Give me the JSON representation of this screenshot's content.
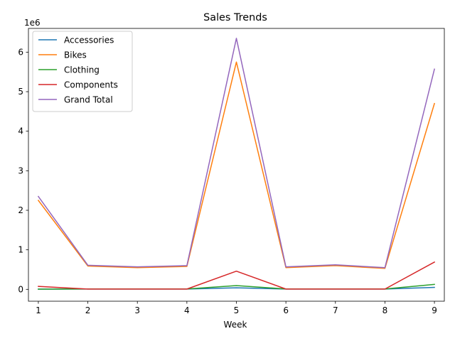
{
  "chart_data": {
    "type": "line",
    "title": "Sales Trends",
    "xlabel": "Week",
    "ylabel": "",
    "y_offset_label": "1e6",
    "x": [
      1,
      2,
      3,
      4,
      5,
      6,
      7,
      8,
      9
    ],
    "x_ticks": [
      "1",
      "2",
      "3",
      "4",
      "5",
      "6",
      "7",
      "8",
      "9"
    ],
    "y_ticks": [
      0,
      1,
      2,
      3,
      4,
      5,
      6
    ],
    "y_tick_labels": [
      "0",
      "1",
      "2",
      "3",
      "4",
      "5",
      "6"
    ],
    "xlim": [
      0.8,
      9.2
    ],
    "ylim": [
      -0.3,
      6.6
    ],
    "y_scale_factor": 1000000,
    "grid": false,
    "legend_position": "top-left",
    "series": [
      {
        "name": "Accessories",
        "color": "#1f77b4",
        "values": [
          5000,
          8000,
          8000,
          8000,
          40000,
          8000,
          8000,
          8000,
          50000
        ]
      },
      {
        "name": "Bikes",
        "color": "#ff7f0e",
        "values": [
          2250000,
          590000,
          550000,
          580000,
          5750000,
          550000,
          600000,
          530000,
          4700000
        ]
      },
      {
        "name": "Clothing",
        "color": "#2ca02c",
        "values": [
          5000,
          10000,
          10000,
          10000,
          95000,
          10000,
          10000,
          10000,
          125000
        ]
      },
      {
        "name": "Components",
        "color": "#d62728",
        "values": [
          75000,
          8000,
          8000,
          8000,
          460000,
          8000,
          8000,
          8000,
          690000
        ]
      },
      {
        "name": "Grand Total",
        "color": "#9467bd",
        "values": [
          2350000,
          610000,
          570000,
          600000,
          6350000,
          570000,
          620000,
          550000,
          5570000
        ]
      }
    ]
  }
}
